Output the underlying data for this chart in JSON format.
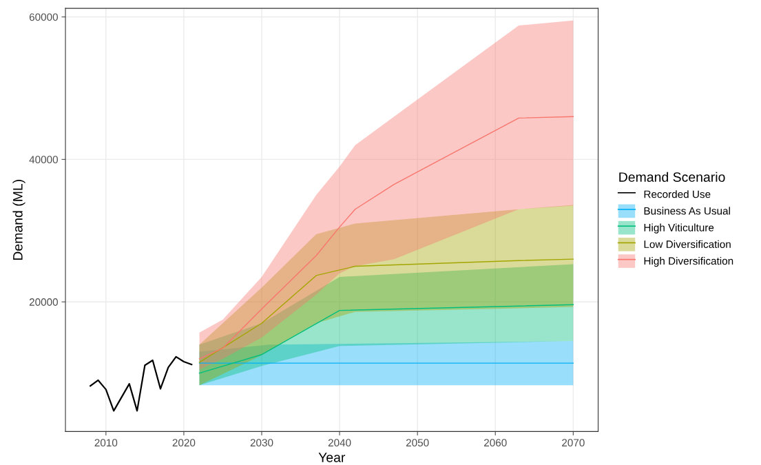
{
  "chart_data": {
    "type": "line",
    "xlabel": "Year",
    "ylabel": "Demand (ML)",
    "legend_title": "Demand Scenario",
    "legend": "right",
    "grid": true,
    "xlim": [
      2004.8,
      2073.2
    ],
    "xticks": [
      2010,
      2020,
      2030,
      2040,
      2050,
      2060,
      2070
    ],
    "ylim": [
      1800,
      61200
    ],
    "yticks": [
      20000,
      40000,
      60000
    ],
    "series": [
      {
        "name": "Recorded Use",
        "color": "#000000",
        "x": [
          2008,
          2009,
          2010,
          2011,
          2013,
          2014,
          2015,
          2016,
          2017,
          2018,
          2019,
          2020,
          2021
        ],
        "values": [
          8200,
          9000,
          7700,
          4700,
          8500,
          4700,
          11100,
          11800,
          7800,
          10800,
          12300,
          11600,
          11200
        ]
      },
      {
        "name": "Business As Usual",
        "color": "#00b0f6",
        "x": [
          2022,
          2031,
          2040,
          2070
        ],
        "values": [
          11400,
          11400,
          11400,
          11400
        ],
        "lower": [
          8300,
          8300,
          8300,
          8300
        ],
        "upper": [
          13000,
          14000,
          14100,
          14500
        ]
      },
      {
        "name": "High Viticulture",
        "color": "#00bf7d",
        "x": [
          2022,
          2030,
          2040,
          2070
        ],
        "values": [
          10000,
          12600,
          18800,
          19600
        ],
        "lower": [
          8300,
          11000,
          13800,
          14500
        ],
        "upper": [
          14000,
          17000,
          23500,
          25300
        ]
      },
      {
        "name": "Low Diversification",
        "color": "#a3a500",
        "x": [
          2022,
          2030,
          2037,
          2042,
          2063,
          2070
        ],
        "values": [
          11500,
          17000,
          23700,
          25000,
          25800,
          26000
        ],
        "lower": [
          8300,
          12500,
          17000,
          18600,
          19100,
          19300
        ],
        "upper": [
          14000,
          22000,
          29500,
          31000,
          33000,
          33600
        ]
      },
      {
        "name": "High Diversification",
        "color": "#f8766d",
        "x": [
          2022,
          2025,
          2030,
          2037,
          2040,
          2042,
          2047,
          2063,
          2070
        ],
        "values": [
          12000,
          13500,
          19000,
          26500,
          30500,
          33000,
          36500,
          45800,
          46000
        ],
        "lower": [
          10500,
          12000,
          15000,
          21000,
          24000,
          25000,
          26000,
          33000,
          33500
        ],
        "upper": [
          15700,
          17500,
          23500,
          35000,
          39000,
          42000,
          46000,
          58800,
          59500
        ]
      }
    ]
  }
}
